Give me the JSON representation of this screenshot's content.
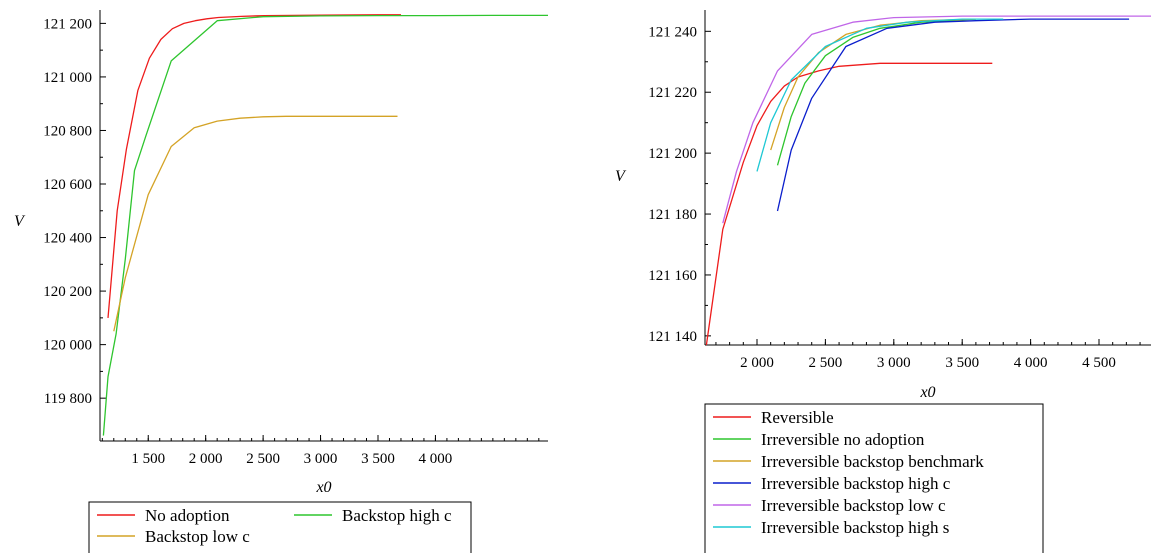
{
  "chart_data": [
    {
      "type": "line",
      "title": "",
      "xlabel": "x0",
      "ylabel": "V",
      "xlim": [
        1080,
        4980
      ],
      "ylim": [
        119640,
        121250
      ],
      "xticks": [
        1500,
        2000,
        2500,
        3000,
        3500,
        4000
      ],
      "xtick_labels": [
        "1 500",
        "2 000",
        "2 500",
        "3 000",
        "3 500",
        "4 000"
      ],
      "yticks": [
        119800,
        120000,
        120200,
        120400,
        120600,
        120800,
        121000,
        121200
      ],
      "ytick_labels": [
        "119 800",
        "120 000",
        "120 200",
        "120 400",
        "120 600",
        "120 800",
        "121 000",
        "121 200"
      ],
      "grid": false,
      "legend_position": "bottom",
      "series": [
        {
          "name": "No adoption",
          "color": "#ee1c1c",
          "x": [
            1150,
            1230,
            1310,
            1410,
            1510,
            1610,
            1710,
            1810,
            1910,
            2010,
            2110,
            2310,
            2510,
            3000,
            3500,
            3700
          ],
          "y": [
            120100,
            120500,
            120730,
            120950,
            121070,
            121140,
            121180,
            121200,
            121210,
            121217,
            121222,
            121226,
            121229,
            121231,
            121232,
            121232
          ]
        },
        {
          "name": "Backstop high c",
          "color": "#2ec52e",
          "x": [
            1110,
            1150,
            1220,
            1300,
            1380,
            1480,
            1700,
            2100,
            2500,
            3000,
            3500,
            4000,
            4500,
            4980
          ],
          "y": [
            119660,
            119880,
            120040,
            120320,
            120650,
            120780,
            121060,
            121210,
            121225,
            121228,
            121229,
            121229,
            121230,
            121230
          ]
        },
        {
          "name": "Backstop low c",
          "color": "#d4a326",
          "x": [
            1200,
            1300,
            1500,
            1700,
            1900,
            2100,
            2300,
            2500,
            2700,
            3000,
            3500,
            3670
          ],
          "y": [
            120050,
            120250,
            120560,
            120740,
            120810,
            120835,
            120846,
            120851,
            120853,
            120853,
            120853,
            120853
          ]
        }
      ]
    },
    {
      "type": "line",
      "title": "",
      "xlabel": "x0",
      "ylabel": "V",
      "xlim": [
        1620,
        4880
      ],
      "ylim": [
        121137,
        121247
      ],
      "xticks": [
        2000,
        2500,
        3000,
        3500,
        4000,
        4500
      ],
      "xtick_labels": [
        "2 000",
        "2 500",
        "3 000",
        "3 500",
        "4 000",
        "4 500"
      ],
      "yticks": [
        121140,
        121160,
        121180,
        121200,
        121220,
        121240
      ],
      "ytick_labels": [
        "121 140",
        "121 160",
        "121 180",
        "121 200",
        "121 220",
        "121 240"
      ],
      "grid": false,
      "legend_position": "bottom",
      "series": [
        {
          "name": "Reversible",
          "color": "#ee1c1c",
          "x": [
            1630,
            1750,
            1900,
            2000,
            2100,
            2200,
            2300,
            2450,
            2600,
            2750,
            2900,
            3100,
            3500,
            3720
          ],
          "y": [
            121137,
            121175,
            121197,
            121209,
            121217,
            121222,
            121225,
            121227,
            121228.5,
            121229,
            121229.5,
            121229.5,
            121229.5,
            121229.5
          ]
        },
        {
          "name": "Irreversible no adoption",
          "color": "#2ec52e",
          "x": [
            2150,
            2250,
            2350,
            2500,
            2700,
            2900,
            3200,
            3600
          ],
          "y": [
            121196,
            121212,
            121223,
            121232,
            121238,
            121241,
            121243,
            121244
          ]
        },
        {
          "name": "Irreversible backstop benchmark",
          "color": "#d4a326",
          "x": [
            2100,
            2200,
            2300,
            2450,
            2650,
            2900,
            3200,
            3600
          ],
          "y": [
            121201,
            121215,
            121225,
            121233,
            121239,
            121242,
            121243.5,
            121244
          ]
        },
        {
          "name": "Irreversible backstop high c",
          "color": "#0a1ecc",
          "x": [
            2150,
            2250,
            2400,
            2650,
            2950,
            3300,
            3600,
            4000,
            4500,
            4720
          ],
          "y": [
            121181,
            121201,
            121218,
            121235,
            121241,
            121243,
            121243.5,
            121244,
            121244,
            121244
          ]
        },
        {
          "name": "Irreversible backstop low c",
          "color": "#c066e8",
          "x": [
            1750,
            1850,
            1970,
            2150,
            2400,
            2700,
            3000,
            3500,
            4000,
            4500,
            4880
          ],
          "y": [
            121177,
            121194,
            121210,
            121227,
            121239,
            121243,
            121244.5,
            121245,
            121245,
            121245,
            121245
          ]
        },
        {
          "name": "Irreversible backstop high s",
          "color": "#1ec8d4",
          "x": [
            2000,
            2100,
            2250,
            2500,
            2800,
            3100,
            3500,
            3800
          ],
          "y": [
            121194,
            121210,
            121224,
            121235,
            121241,
            121243,
            121244,
            121244
          ]
        }
      ]
    }
  ]
}
